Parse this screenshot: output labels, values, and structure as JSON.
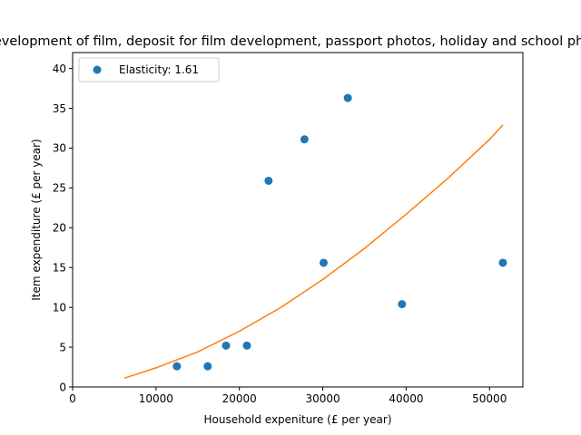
{
  "chart_data": {
    "type": "scatter",
    "title": "Development of film, deposit for film development, passport photos, holiday and school photos",
    "xlabel": "Household expeniture (£ per year)",
    "ylabel": "Item expenditure (£ per year)",
    "xlim": [
      0,
      54000
    ],
    "ylim": [
      0,
      42
    ],
    "xticks": [
      0,
      10000,
      20000,
      30000,
      40000,
      50000
    ],
    "yticks": [
      0,
      5,
      10,
      15,
      20,
      25,
      30,
      35,
      40
    ],
    "legend_placement": "top-left",
    "grid": false,
    "series": [
      {
        "name": "Elasticity: 1.61",
        "kind": "points",
        "color": "#1f77b4",
        "points": [
          {
            "x": 12500,
            "y": 2.6
          },
          {
            "x": 16200,
            "y": 2.6
          },
          {
            "x": 18400,
            "y": 5.2
          },
          {
            "x": 20900,
            "y": 5.2
          },
          {
            "x": 23500,
            "y": 25.9
          },
          {
            "x": 27800,
            "y": 31.1
          },
          {
            "x": 30100,
            "y": 15.6
          },
          {
            "x": 33000,
            "y": 36.3
          },
          {
            "x": 39500,
            "y": 10.4
          },
          {
            "x": 51600,
            "y": 15.6
          }
        ]
      },
      {
        "kind": "line",
        "color": "#ff7f0e",
        "points": [
          {
            "x": 6200,
            "y": 1.1
          },
          {
            "x": 10000,
            "y": 2.4
          },
          {
            "x": 15000,
            "y": 4.4
          },
          {
            "x": 20000,
            "y": 7.0
          },
          {
            "x": 25000,
            "y": 10.0
          },
          {
            "x": 30000,
            "y": 13.5
          },
          {
            "x": 35000,
            "y": 17.4
          },
          {
            "x": 40000,
            "y": 21.7
          },
          {
            "x": 45000,
            "y": 26.2
          },
          {
            "x": 50000,
            "y": 31.1
          },
          {
            "x": 51600,
            "y": 32.9
          }
        ]
      }
    ]
  }
}
